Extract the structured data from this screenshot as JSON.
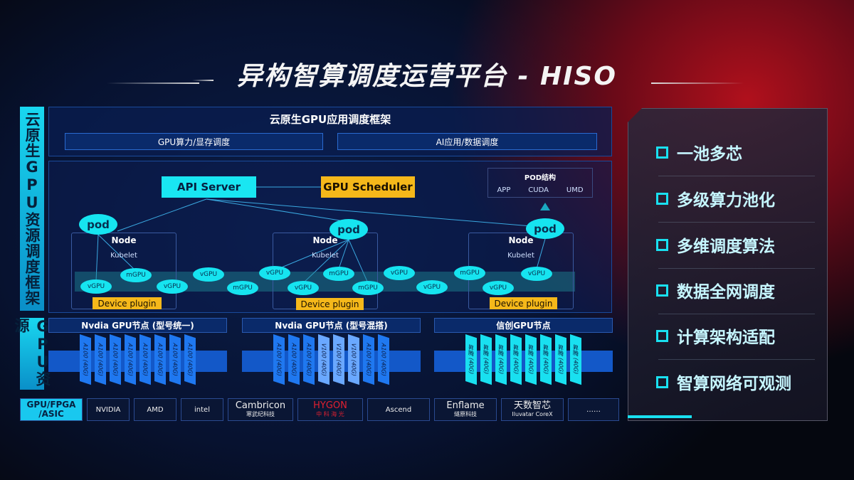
{
  "title": "异构智算调度运营平台 - HISO",
  "left_labels": {
    "framework": "云原生GPU资源调度框架",
    "resources": "GPU资源"
  },
  "top_panel": {
    "title": "云原生GPU应用调度框架",
    "boxes": [
      "GPU算力/显存调度",
      "AI应用/数据调度"
    ]
  },
  "diagram": {
    "api_server": "API Server",
    "gpu_scheduler": "GPU Scheduler",
    "pod_structure": {
      "title": "POD结构",
      "items": [
        "APP",
        "CUDA",
        "UMD"
      ]
    },
    "pod": "pod",
    "node": "Node",
    "kubelet": "Kubelet",
    "device_plugin": "Device plugin",
    "units": [
      "vGPU",
      "mGPU",
      "vGPU",
      "vGPU",
      "mGPU",
      "vGPU",
      "vGPU",
      "mGPU",
      "mGPU",
      "vGPU",
      "vGPU",
      "mGPU",
      "vGPU",
      "vGPU"
    ]
  },
  "gpu_nodes": [
    {
      "title": "Nvdia GPU节点 (型号统一)",
      "cards": [
        "A100 (40G)",
        "A100 (40G)",
        "A100 (40G)",
        "A100 (40G)",
        "A100 (40G)",
        "A100 (40G)",
        "A100 (40G)",
        "A100 (40G)"
      ],
      "color": "#1f78f0"
    },
    {
      "title": "Nvdia GPU节点 (型号混搭)",
      "cards": [
        "A100 (40G)",
        "A100 (40G)",
        "A100 (40G)",
        "V100 (40G)",
        "V100 (40G)",
        "V100 (40G)",
        "A100 (40G)",
        "A100 (40G)"
      ],
      "color": "#1f78f0"
    },
    {
      "title": "信创GPU节点",
      "cards": [
        "昇腾 (40G)",
        "昇腾 (40G)",
        "昇腾 (40G)",
        "昇腾 (40G)",
        "昇腾 (40G)",
        "昇腾 (40G)",
        "昇腾 (40G)",
        "昇腾 (40G)"
      ],
      "color": "#19e0f0"
    }
  ],
  "vendors": {
    "label": "GPU/FPGA /ASIC",
    "items": [
      [
        "NVIDIA"
      ],
      [
        "AMD"
      ],
      [
        "intel"
      ],
      [
        "Cambricon",
        "寒武纪科技"
      ],
      [
        "HYGON",
        "中 科 海 光"
      ],
      [
        "Ascend"
      ],
      [
        "Enflame",
        "燧原科技"
      ],
      [
        "天数智芯",
        "Iluvatar CoreX"
      ],
      [
        "……"
      ]
    ]
  },
  "features": [
    "一池多芯",
    "多级算力池化",
    "多维调度算法",
    "数据全网调度",
    "计算架构适配",
    "智算网络可观测"
  ]
}
